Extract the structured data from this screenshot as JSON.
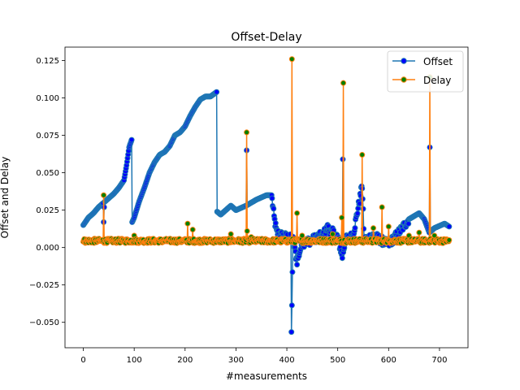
{
  "chart_data": {
    "type": "line",
    "title": "Offset-Delay",
    "xlabel": "#measurements",
    "ylabel": "Offset and Delay",
    "xlim": [
      -36,
      756
    ],
    "ylim": [
      -0.067,
      0.134
    ],
    "xticks": [
      0,
      100,
      200,
      300,
      400,
      500,
      600,
      700
    ],
    "yticks": [
      -0.05,
      -0.025,
      0.0,
      0.025,
      0.05,
      0.075,
      0.1,
      0.125
    ],
    "xtick_labels": [
      "0",
      "100",
      "200",
      "300",
      "400",
      "500",
      "600",
      "700"
    ],
    "ytick_labels": [
      "−0.050",
      "−0.025",
      "0.000",
      "0.025",
      "0.050",
      "0.075",
      "0.100",
      "0.125"
    ],
    "legend_position": "top-right",
    "series": [
      {
        "name": "Offset",
        "color": "#1f77b4",
        "marker_face": "#0000ff",
        "anchors": [
          [
            0,
            0.015
          ],
          [
            10,
            0.02
          ],
          [
            20,
            0.023
          ],
          [
            30,
            0.027
          ],
          [
            40,
            0.03
          ],
          [
            50,
            0.033
          ],
          [
            60,
            0.036
          ],
          [
            70,
            0.04
          ],
          [
            80,
            0.045
          ],
          [
            85,
            0.055
          ],
          [
            90,
            0.067
          ],
          [
            95,
            0.072
          ],
          [
            96,
            0.017
          ],
          [
            100,
            0.02
          ],
          [
            110,
            0.031
          ],
          [
            120,
            0.04
          ],
          [
            130,
            0.05
          ],
          [
            140,
            0.057
          ],
          [
            150,
            0.062
          ],
          [
            160,
            0.064
          ],
          [
            170,
            0.068
          ],
          [
            180,
            0.075
          ],
          [
            190,
            0.077
          ],
          [
            200,
            0.081
          ],
          [
            210,
            0.088
          ],
          [
            220,
            0.094
          ],
          [
            230,
            0.099
          ],
          [
            240,
            0.101
          ],
          [
            250,
            0.101
          ],
          [
            262,
            0.104
          ],
          [
            263,
            0.024
          ],
          [
            270,
            0.022
          ],
          [
            280,
            0.025
          ],
          [
            290,
            0.028
          ],
          [
            300,
            0.025
          ],
          [
            320,
            0.028
          ],
          [
            340,
            0.032
          ],
          [
            360,
            0.035
          ],
          [
            370,
            0.035
          ],
          [
            375,
            0.02
          ],
          [
            380,
            0.01
          ],
          [
            390,
            0.008
          ],
          [
            408,
            0.006
          ],
          [
            409,
            -0.058
          ],
          [
            412,
            0.005
          ],
          [
            420,
            -0.009
          ],
          [
            430,
            0.003
          ],
          [
            450,
            0.005
          ],
          [
            460,
            0.007
          ],
          [
            470,
            0.008
          ],
          [
            480,
            0.013
          ],
          [
            490,
            0.01
          ],
          [
            500,
            0.007
          ],
          [
            509,
            -0.006
          ],
          [
            515,
            0.005
          ],
          [
            530,
            0.008
          ],
          [
            548,
            0.041
          ],
          [
            552,
            0.005
          ],
          [
            570,
            0.008
          ],
          [
            590,
            0.004
          ],
          [
            600,
            0.002
          ],
          [
            620,
            0.01
          ],
          [
            640,
            0.019
          ],
          [
            660,
            0.023
          ],
          [
            670,
            0.019
          ],
          [
            680,
            0.01
          ],
          [
            690,
            0.013
          ],
          [
            710,
            0.016
          ],
          [
            719,
            0.014
          ]
        ],
        "spikes": [
          [
            40,
            0.017
          ],
          [
            41,
            0.027
          ],
          [
            321,
            0.065
          ],
          [
            510,
            0.059
          ],
          [
            547,
            0.041
          ],
          [
            681,
            0.067
          ]
        ]
      },
      {
        "name": "Delay",
        "color": "#ff7f0e",
        "marker_face": "#008000",
        "baseline": 0.004,
        "spikes": [
          [
            40,
            0.035
          ],
          [
            100,
            0.008
          ],
          [
            205,
            0.016
          ],
          [
            215,
            0.012
          ],
          [
            290,
            0.009
          ],
          [
            321,
            0.077
          ],
          [
            322,
            0.011
          ],
          [
            330,
            0.007
          ],
          [
            410,
            0.126
          ],
          [
            420,
            0.023
          ],
          [
            430,
            0.008
          ],
          [
            490,
            0.009
          ],
          [
            508,
            0.02
          ],
          [
            511,
            0.11
          ],
          [
            548,
            0.062
          ],
          [
            570,
            0.013
          ],
          [
            587,
            0.027
          ],
          [
            600,
            0.014
          ],
          [
            640,
            0.008
          ],
          [
            660,
            0.01
          ],
          [
            681,
            0.114
          ],
          [
            690,
            0.008
          ],
          [
            719,
            0.005
          ]
        ]
      }
    ]
  }
}
